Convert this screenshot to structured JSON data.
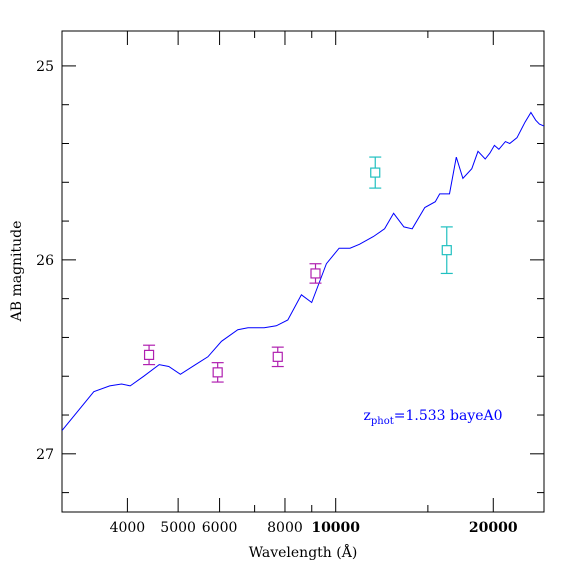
{
  "colors": {
    "model_line": "#0000ff",
    "series_optical": "#b020b0",
    "series_nir": "#20c0c0",
    "frame": "#000000",
    "annotation": "#0000ff"
  },
  "chart_data": {
    "type": "scatter",
    "xlabel": "Wavelength (Å)",
    "ylabel": "AB magnitude",
    "xscale": "log",
    "xlim": [
      3000,
      25000
    ],
    "ylim": [
      27.3,
      24.82
    ],
    "y_inverted": true,
    "grid": false,
    "x_major_ticks": [
      4000,
      5000,
      6000,
      8000,
      10000,
      20000
    ],
    "x_tick_labels": [
      "4000",
      "5000",
      "6000",
      "8000",
      "10000",
      "20000"
    ],
    "x_bold_labels": [
      "10000",
      "20000"
    ],
    "x_minor_ticks": [
      3000,
      7000,
      9000,
      15000
    ],
    "y_major_ticks": [
      25,
      26,
      27
    ],
    "y_tick_labels": [
      "25",
      "26",
      "27"
    ],
    "y_minor_step": 0.2,
    "annotation": {
      "base": "z",
      "subscript": "phot",
      "text": "=1.533 bayeA0",
      "x": 11300,
      "y": 26.8
    },
    "model": {
      "x": [
        3000,
        3450,
        3700,
        3900,
        4050,
        4300,
        4600,
        4800,
        5050,
        5400,
        5700,
        6050,
        6500,
        6800,
        7300,
        7700,
        8100,
        8600,
        9000,
        9600,
        10150,
        10650,
        11100,
        11800,
        12400,
        12900,
        13500,
        14000,
        14800,
        15500,
        15800,
        16500,
        17000,
        17500,
        18200,
        18700,
        19300,
        19700,
        20100,
        20500,
        21100,
        21500,
        22200,
        23000,
        23600,
        24100,
        24500,
        25000
      ],
      "y": [
        26.88,
        26.68,
        26.65,
        26.64,
        26.65,
        26.6,
        26.54,
        26.55,
        26.59,
        26.54,
        26.5,
        26.42,
        26.36,
        26.35,
        26.35,
        26.34,
        26.31,
        26.18,
        26.22,
        26.02,
        25.94,
        25.94,
        25.92,
        25.88,
        25.84,
        25.76,
        25.83,
        25.84,
        25.73,
        25.7,
        25.66,
        25.66,
        25.47,
        25.58,
        25.53,
        25.44,
        25.48,
        25.45,
        25.41,
        25.43,
        25.39,
        25.4,
        25.37,
        25.29,
        25.24,
        25.28,
        25.3,
        25.31
      ]
    },
    "series": [
      {
        "marker": "open-square",
        "color": "#b020b0",
        "points": [
          {
            "x": 4400,
            "y": 26.49,
            "err": 0.05
          },
          {
            "x": 5950,
            "y": 26.58,
            "err": 0.05
          },
          {
            "x": 7750,
            "y": 26.5,
            "err": 0.05
          },
          {
            "x": 9150,
            "y": 26.07,
            "err": 0.05
          }
        ]
      },
      {
        "marker": "open-square",
        "color": "#20c0c0",
        "points": [
          {
            "x": 11900,
            "y": 25.55,
            "err": 0.08
          },
          {
            "x": 16300,
            "y": 25.95,
            "err": 0.12
          }
        ]
      }
    ]
  }
}
